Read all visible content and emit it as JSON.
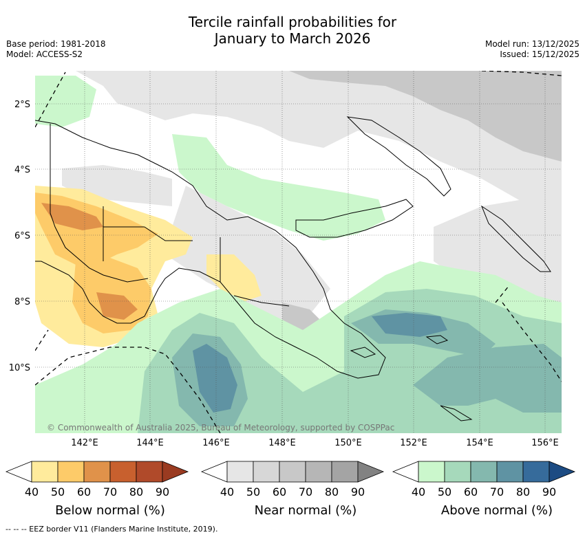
{
  "title_line1": "Tercile rainfall probabilities for",
  "title_line2": "January to March 2026",
  "base_period": "Base period: 1981-2018",
  "model": "Model: ACCESS-S2",
  "model_run": "Model run: 13/12/2025",
  "issued": "Issued: 15/12/2025",
  "copyright": "© Commonwealth of Australia 2025, Bureau of Meteorology, supported by COSPPac",
  "footnote": "--  --  -- EEZ border V11 (Flanders Marine Institute, 2019).",
  "lat_ticks": [
    "2°S",
    "4°S",
    "6°S",
    "8°S",
    "10°S"
  ],
  "lon_ticks": [
    "142°E",
    "144°E",
    "146°E",
    "148°E",
    "150°E",
    "152°E",
    "154°E",
    "156°E"
  ],
  "colorbars": [
    {
      "name": "below-normal",
      "label": "Below normal (%)",
      "ticks": [
        "40",
        "50",
        "60",
        "70",
        "80",
        "90"
      ],
      "colors": [
        "#ffffff",
        "#ffeb9c",
        "#fdcb69",
        "#e0924a",
        "#c8602e",
        "#b04a2a",
        "#9a3b21"
      ]
    },
    {
      "name": "near-normal",
      "label": "Near normal (%)",
      "ticks": [
        "40",
        "50",
        "60",
        "70",
        "80",
        "90"
      ],
      "colors": [
        "#ffffff",
        "#e6e6e6",
        "#d7d7d7",
        "#c8c8c8",
        "#b6b6b6",
        "#a4a4a4",
        "#828282"
      ]
    },
    {
      "name": "above-normal",
      "label": "Above normal (%)",
      "ticks": [
        "40",
        "50",
        "60",
        "70",
        "80",
        "90"
      ],
      "colors": [
        "#ffffff",
        "#cbf7cc",
        "#a6d9bb",
        "#84b8ae",
        "#5f93a3",
        "#366b9b",
        "#1c4b83"
      ]
    }
  ]
}
